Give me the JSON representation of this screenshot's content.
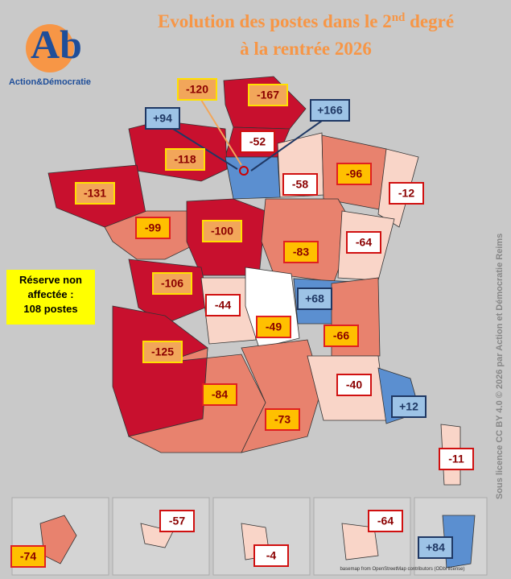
{
  "header": {
    "title_line1": "Evolution des postes dans le 2",
    "title_sup": "nd",
    "title_rest": " degré",
    "title_line2": "à la rentrée 2026"
  },
  "logo": {
    "letters": "Ab",
    "name": "Action&Démocratie"
  },
  "reserve": {
    "lines": [
      "Réserve non",
      "affectée :",
      "108 postes"
    ]
  },
  "credit": "Sous licence CC BY 4.0 © 2026 par Action et Démocratie Reims",
  "basemap": "basemap from OpenStreetMap contributors (ODbl license)",
  "styles": {
    "orange": {
      "fill": "#f2a65a",
      "border": "#ffe000",
      "text": "#8b0000"
    },
    "yellow": {
      "fill": "#ffc000",
      "border": "#e02020",
      "text": "#8b0000"
    },
    "white": {
      "fill": "#ffffff",
      "border": "#d01010",
      "text": "#8b0000"
    },
    "blue": {
      "fill": "#9dc3e6",
      "border": "#1f3864",
      "text": "#1f3864"
    }
  },
  "labels": [
    {
      "text": "-120",
      "style": "orange"
    },
    {
      "text": "-167",
      "style": "orange"
    },
    {
      "text": "+94",
      "style": "blue"
    },
    {
      "text": "+166",
      "style": "blue"
    },
    {
      "text": "-52",
      "style": "white"
    },
    {
      "text": "-118",
      "style": "orange"
    },
    {
      "text": "-96",
      "style": "yellow"
    },
    {
      "text": "-58",
      "style": "white"
    },
    {
      "text": "-12",
      "style": "white"
    },
    {
      "text": "-131",
      "style": "orange"
    },
    {
      "text": "-99",
      "style": "yellow"
    },
    {
      "text": "-100",
      "style": "orange"
    },
    {
      "text": "-64",
      "style": "white"
    },
    {
      "text": "-83",
      "style": "yellow"
    },
    {
      "text": "-106",
      "style": "orange"
    },
    {
      "text": "-44",
      "style": "white"
    },
    {
      "text": "+68",
      "style": "blue"
    },
    {
      "text": "-49",
      "style": "yellow"
    },
    {
      "text": "-66",
      "style": "yellow"
    },
    {
      "text": "-125",
      "style": "orange"
    },
    {
      "text": "-40",
      "style": "white"
    },
    {
      "text": "-84",
      "style": "yellow"
    },
    {
      "text": "+12",
      "style": "blue"
    },
    {
      "text": "-73",
      "style": "yellow"
    },
    {
      "text": "-11",
      "style": "white"
    },
    {
      "text": "-57",
      "style": "white"
    },
    {
      "text": "-64",
      "style": "white"
    },
    {
      "text": "-74",
      "style": "yellow"
    },
    {
      "text": "-4",
      "style": "white"
    },
    {
      "text": "+84",
      "style": "blue"
    }
  ]
}
